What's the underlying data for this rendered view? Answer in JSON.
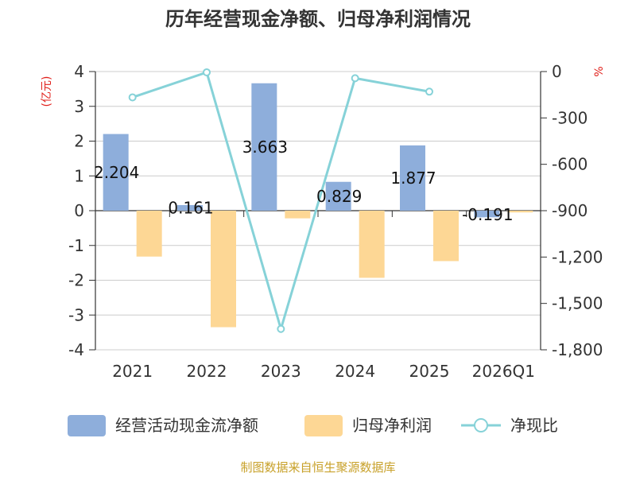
{
  "chart_data": {
    "type": "bar+line",
    "title": "历年经营现金净额、归母净利润情况",
    "categories": [
      "2021",
      "2022",
      "2023",
      "2024",
      "2025",
      "2026Q1"
    ],
    "series": [
      {
        "name": "经营活动现金流净额",
        "type": "bar",
        "axis": "left",
        "color": "#8eaedb",
        "values": [
          2.204,
          0.161,
          3.663,
          0.829,
          1.877,
          -0.191
        ]
      },
      {
        "name": "归母净利润",
        "type": "bar",
        "axis": "left",
        "color": "#fdd795",
        "values": [
          -1.32,
          -3.35,
          -0.22,
          -1.93,
          -1.45,
          -0.05
        ]
      },
      {
        "name": "净现比",
        "type": "line",
        "axis": "right",
        "color": "#86d2d8",
        "values": [
          -167,
          -5,
          -1665,
          -43,
          -130,
          null
        ]
      }
    ],
    "data_labels": [
      "2.204",
      "0.161",
      "3.663",
      "0.829",
      "1.877",
      "-0.191"
    ],
    "left_axis": {
      "unit": "(亿元)",
      "ylim": [
        -4,
        4
      ],
      "ticks": [
        4,
        3,
        2,
        1,
        0,
        -1,
        -2,
        -3,
        -4
      ],
      "tick_labels": [
        "4",
        "3",
        "2",
        "1",
        "0",
        "-1",
        "-2",
        "-3",
        "-4"
      ]
    },
    "right_axis": {
      "unit": "%",
      "ylim": [
        -1800,
        0
      ],
      "ticks": [
        0,
        -300,
        -600,
        -900,
        -1200,
        -1500,
        -1800
      ],
      "tick_labels": [
        "0",
        "-300",
        "-600",
        "-900",
        "-1,200",
        "-1,500",
        "-1,800"
      ]
    },
    "legend": [
      "经营活动现金流净额",
      "归母净利润",
      "净现比"
    ],
    "source": "制图数据来自恒生聚源数据库"
  }
}
